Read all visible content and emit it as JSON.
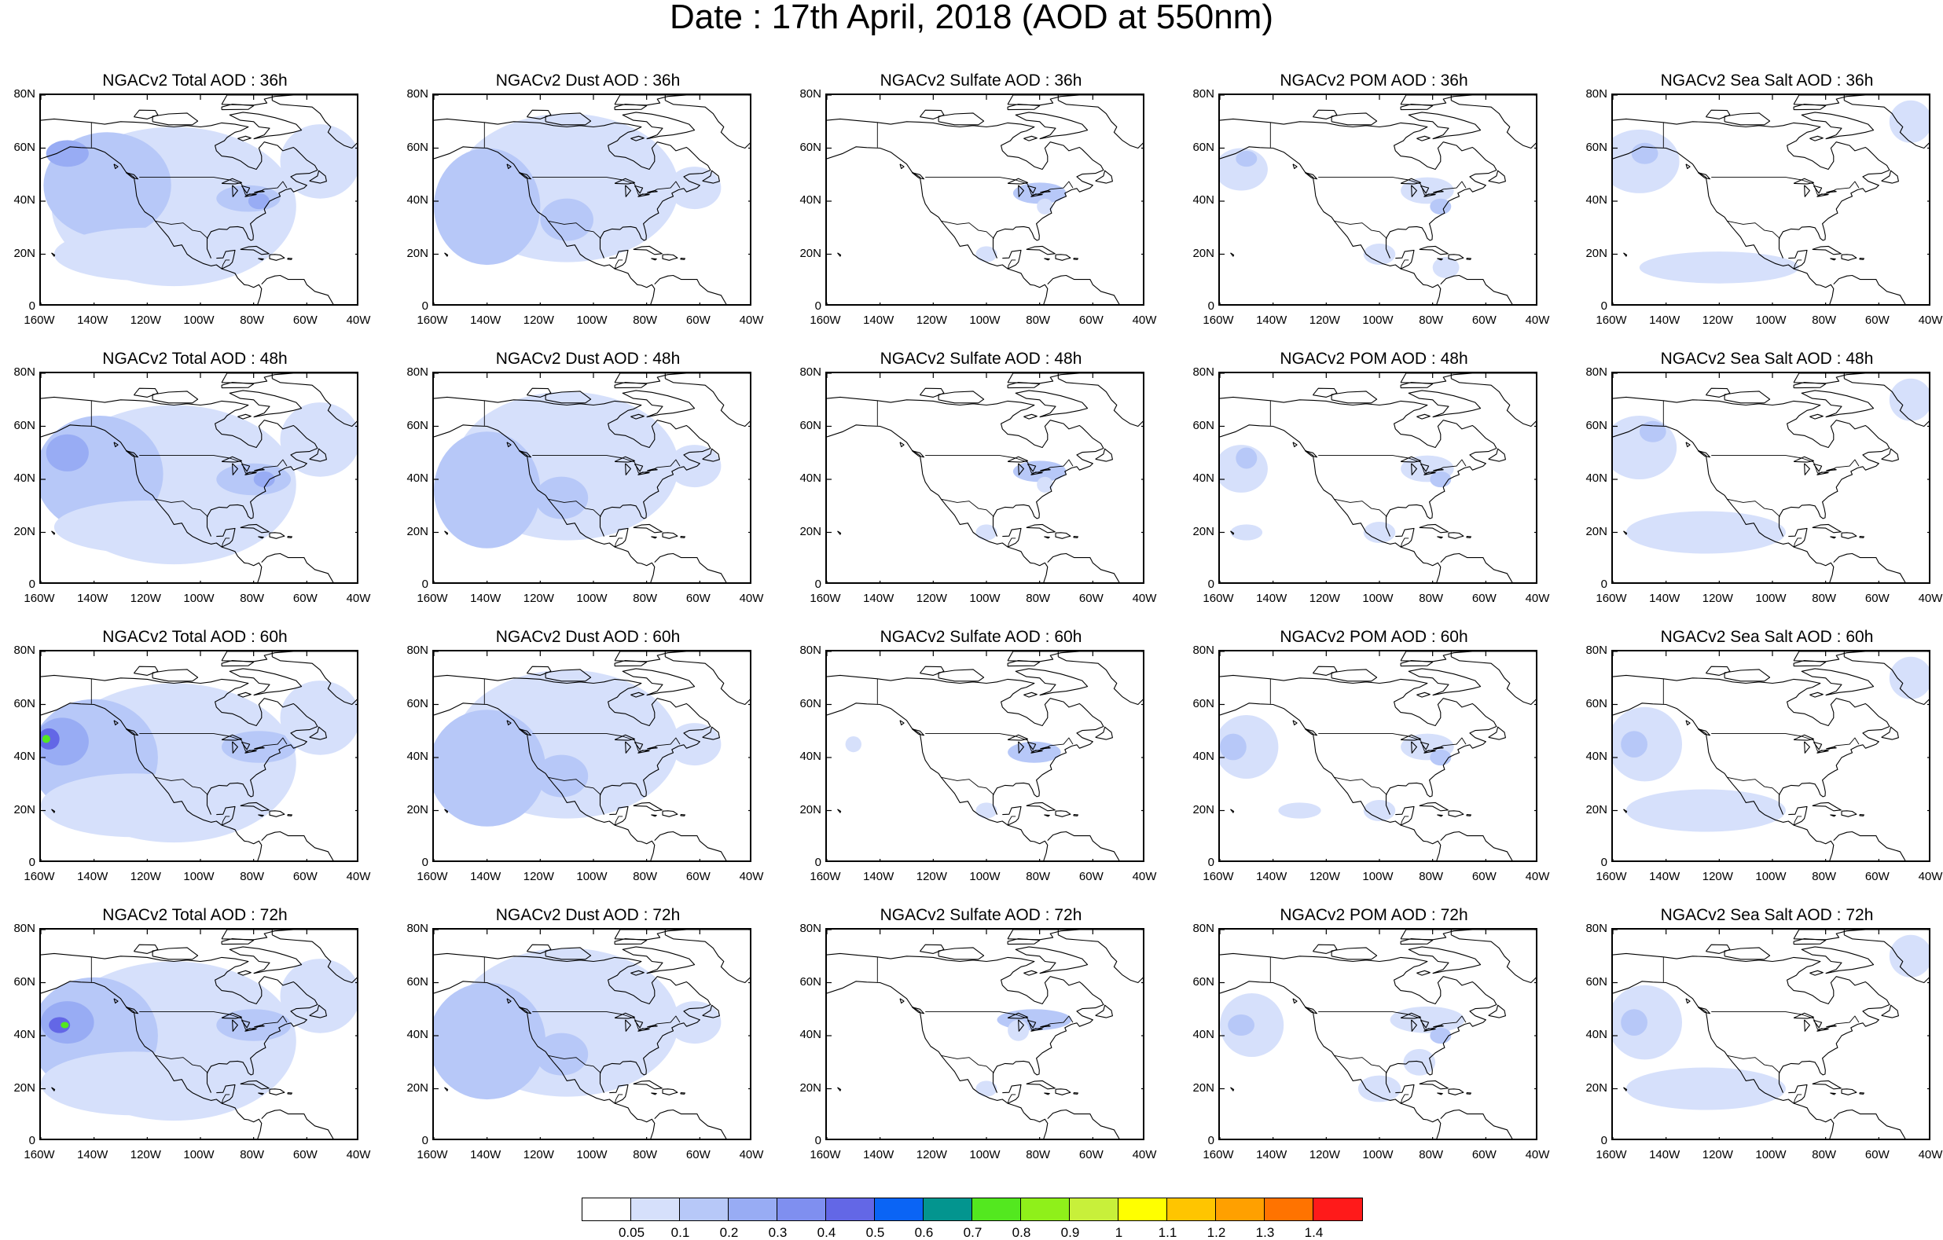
{
  "title": "Date : 17th April, 2018 (AOD at 550nm)",
  "axes": {
    "y_ticks": [
      "80N",
      "60N",
      "40N",
      "20N",
      "0"
    ],
    "x_ticks": [
      "160W",
      "140W",
      "120W",
      "100W",
      "80W",
      "60W",
      "40W"
    ]
  },
  "panels": [
    {
      "title": "NGACv2 Total AOD : 36h",
      "species": "total",
      "lead": 36
    },
    {
      "title": "NGACv2 Dust AOD : 36h",
      "species": "dust",
      "lead": 36
    },
    {
      "title": "NGACv2 Sulfate AOD : 36h",
      "species": "sulfate",
      "lead": 36
    },
    {
      "title": "NGACv2 POM AOD : 36h",
      "species": "pom",
      "lead": 36
    },
    {
      "title": "NGACv2 Sea Salt AOD : 36h",
      "species": "seasalt",
      "lead": 36
    },
    {
      "title": "NGACv2 Total AOD : 48h",
      "species": "total",
      "lead": 48
    },
    {
      "title": "NGACv2 Dust AOD : 48h",
      "species": "dust",
      "lead": 48
    },
    {
      "title": "NGACv2 Sulfate AOD : 48h",
      "species": "sulfate",
      "lead": 48
    },
    {
      "title": "NGACv2 POM AOD : 48h",
      "species": "pom",
      "lead": 48
    },
    {
      "title": "NGACv2 Sea Salt AOD : 48h",
      "species": "seasalt",
      "lead": 48
    },
    {
      "title": "NGACv2 Total AOD : 60h",
      "species": "total",
      "lead": 60
    },
    {
      "title": "NGACv2 Dust AOD : 60h",
      "species": "dust",
      "lead": 60
    },
    {
      "title": "NGACv2 Sulfate AOD : 60h",
      "species": "sulfate",
      "lead": 60
    },
    {
      "title": "NGACv2 POM AOD : 60h",
      "species": "pom",
      "lead": 60
    },
    {
      "title": "NGACv2 Sea Salt AOD : 60h",
      "species": "seasalt",
      "lead": 60
    },
    {
      "title": "NGACv2 Total AOD : 72h",
      "species": "total",
      "lead": 72
    },
    {
      "title": "NGACv2 Dust AOD : 72h",
      "species": "dust",
      "lead": 72
    },
    {
      "title": "NGACv2 Sulfate AOD : 72h",
      "species": "sulfate",
      "lead": 72
    },
    {
      "title": "NGACv2 POM AOD : 72h",
      "species": "pom",
      "lead": 72
    },
    {
      "title": "NGACv2 Sea Salt  AOD : 72h",
      "species": "seasalt",
      "lead": 72
    }
  ],
  "colorbar": {
    "labels": [
      "0.05",
      "0.1",
      "0.2",
      "0.3",
      "0.4",
      "0.5",
      "0.6",
      "0.7",
      "0.8",
      "0.9",
      "1",
      "1.1",
      "1.2",
      "1.3",
      "1.4"
    ],
    "colors": [
      "#ffffff",
      "#d6e0fb",
      "#b7c8f8",
      "#98acf4",
      "#7f8ff0",
      "#6367e6",
      "#0a64f5",
      "#03958f",
      "#53e81f",
      "#8ff01a",
      "#c8f03a",
      "#ffff00",
      "#ffc500",
      "#ffa000",
      "#ff7300",
      "#ff1a1a"
    ]
  }
}
